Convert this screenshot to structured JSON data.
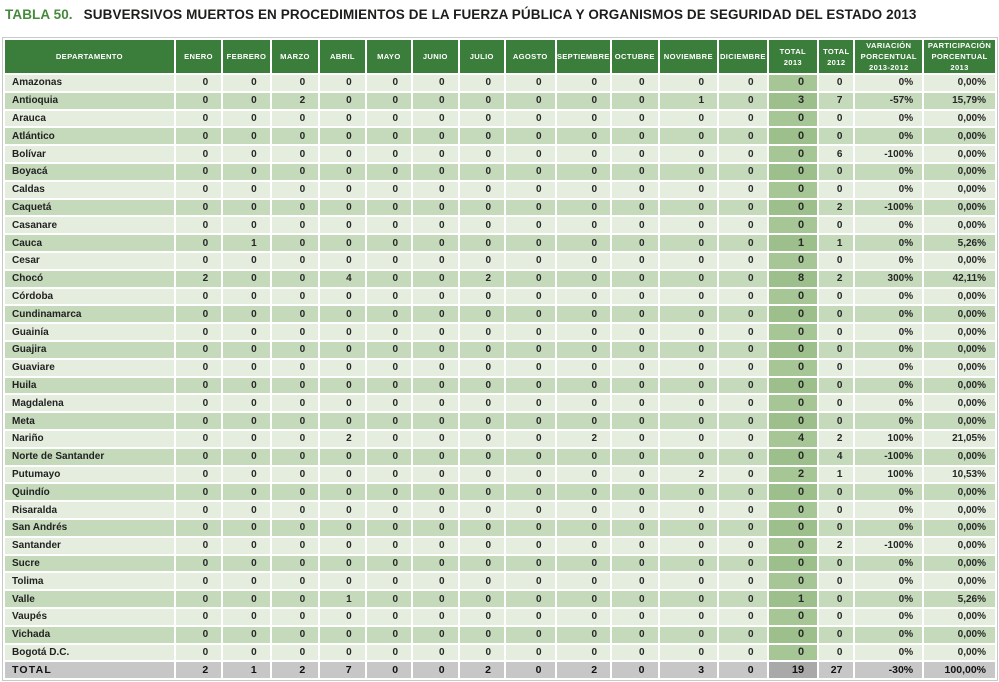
{
  "title": {
    "label": "TABLA 50.",
    "text": "SUBVERSIVOS MUERTOS EN PROCEDIMIENTOS DE LA FUERZA PÚBLICA Y ORGANISMOS DE SEGURIDAD DEL ESTADO 2013"
  },
  "colors": {
    "title_green": "#46893c",
    "header_green": "#3b7d3a",
    "row_light": "#e5edde",
    "row_dark": "#c5d9bb",
    "total2013_col_light": "#a6c795",
    "total2013_col_dark": "#9cbf8b",
    "total_row_gray": "#c7c7c7",
    "total_row_total_cell_gray": "#a9a9a9"
  },
  "table": {
    "header": {
      "departamento": "DEPARTAMENTO",
      "months": [
        "ENERO",
        "FEBRERO",
        "MARZO",
        "ABRIL",
        "MAYO",
        "JUNIO",
        "JULIO",
        "AGOSTO",
        "SEPTIEMBRE",
        "OCTUBRE",
        "NOVIEMBRE",
        "DICIEMBRE"
      ],
      "total2013": [
        "TOTAL",
        "2013"
      ],
      "total2012": [
        "TOTAL",
        "2012"
      ],
      "variacion": [
        "VARIACIÓN",
        "PORCENTUAL",
        "2013-2012"
      ],
      "participacion": [
        "PARTICIPACIÓN",
        "PORCENTUAL",
        "2013"
      ]
    },
    "rows": [
      [
        "Amazonas",
        0,
        0,
        0,
        0,
        0,
        0,
        0,
        0,
        0,
        0,
        0,
        0,
        0,
        0,
        "0%",
        "0,00%"
      ],
      [
        "Antioquia",
        0,
        0,
        2,
        0,
        0,
        0,
        0,
        0,
        0,
        0,
        1,
        0,
        3,
        7,
        "-57%",
        "15,79%"
      ],
      [
        "Arauca",
        0,
        0,
        0,
        0,
        0,
        0,
        0,
        0,
        0,
        0,
        0,
        0,
        0,
        0,
        "0%",
        "0,00%"
      ],
      [
        "Atlántico",
        0,
        0,
        0,
        0,
        0,
        0,
        0,
        0,
        0,
        0,
        0,
        0,
        0,
        0,
        "0%",
        "0,00%"
      ],
      [
        "Bolívar",
        0,
        0,
        0,
        0,
        0,
        0,
        0,
        0,
        0,
        0,
        0,
        0,
        0,
        6,
        "-100%",
        "0,00%"
      ],
      [
        "Boyacá",
        0,
        0,
        0,
        0,
        0,
        0,
        0,
        0,
        0,
        0,
        0,
        0,
        0,
        0,
        "0%",
        "0,00%"
      ],
      [
        "Caldas",
        0,
        0,
        0,
        0,
        0,
        0,
        0,
        0,
        0,
        0,
        0,
        0,
        0,
        0,
        "0%",
        "0,00%"
      ],
      [
        "Caquetá",
        0,
        0,
        0,
        0,
        0,
        0,
        0,
        0,
        0,
        0,
        0,
        0,
        0,
        2,
        "-100%",
        "0,00%"
      ],
      [
        "Casanare",
        0,
        0,
        0,
        0,
        0,
        0,
        0,
        0,
        0,
        0,
        0,
        0,
        0,
        0,
        "0%",
        "0,00%"
      ],
      [
        "Cauca",
        0,
        1,
        0,
        0,
        0,
        0,
        0,
        0,
        0,
        0,
        0,
        0,
        1,
        1,
        "0%",
        "5,26%"
      ],
      [
        "Cesar",
        0,
        0,
        0,
        0,
        0,
        0,
        0,
        0,
        0,
        0,
        0,
        0,
        0,
        0,
        "0%",
        "0,00%"
      ],
      [
        "Chocó",
        2,
        0,
        0,
        4,
        0,
        0,
        2,
        0,
        0,
        0,
        0,
        0,
        8,
        2,
        "300%",
        "42,11%"
      ],
      [
        "Córdoba",
        0,
        0,
        0,
        0,
        0,
        0,
        0,
        0,
        0,
        0,
        0,
        0,
        0,
        0,
        "0%",
        "0,00%"
      ],
      [
        "Cundinamarca",
        0,
        0,
        0,
        0,
        0,
        0,
        0,
        0,
        0,
        0,
        0,
        0,
        0,
        0,
        "0%",
        "0,00%"
      ],
      [
        "Guainía",
        0,
        0,
        0,
        0,
        0,
        0,
        0,
        0,
        0,
        0,
        0,
        0,
        0,
        0,
        "0%",
        "0,00%"
      ],
      [
        "Guajira",
        0,
        0,
        0,
        0,
        0,
        0,
        0,
        0,
        0,
        0,
        0,
        0,
        0,
        0,
        "0%",
        "0,00%"
      ],
      [
        "Guaviare",
        0,
        0,
        0,
        0,
        0,
        0,
        0,
        0,
        0,
        0,
        0,
        0,
        0,
        0,
        "0%",
        "0,00%"
      ],
      [
        "Huila",
        0,
        0,
        0,
        0,
        0,
        0,
        0,
        0,
        0,
        0,
        0,
        0,
        0,
        0,
        "0%",
        "0,00%"
      ],
      [
        "Magdalena",
        0,
        0,
        0,
        0,
        0,
        0,
        0,
        0,
        0,
        0,
        0,
        0,
        0,
        0,
        "0%",
        "0,00%"
      ],
      [
        "Meta",
        0,
        0,
        0,
        0,
        0,
        0,
        0,
        0,
        0,
        0,
        0,
        0,
        0,
        0,
        "0%",
        "0,00%"
      ],
      [
        "Nariño",
        0,
        0,
        0,
        2,
        0,
        0,
        0,
        0,
        2,
        0,
        0,
        0,
        4,
        2,
        "100%",
        "21,05%"
      ],
      [
        "Norte de Santander",
        0,
        0,
        0,
        0,
        0,
        0,
        0,
        0,
        0,
        0,
        0,
        0,
        0,
        4,
        "-100%",
        "0,00%"
      ],
      [
        "Putumayo",
        0,
        0,
        0,
        0,
        0,
        0,
        0,
        0,
        0,
        0,
        2,
        0,
        2,
        1,
        "100%",
        "10,53%"
      ],
      [
        "Quindío",
        0,
        0,
        0,
        0,
        0,
        0,
        0,
        0,
        0,
        0,
        0,
        0,
        0,
        0,
        "0%",
        "0,00%"
      ],
      [
        "Risaralda",
        0,
        0,
        0,
        0,
        0,
        0,
        0,
        0,
        0,
        0,
        0,
        0,
        0,
        0,
        "0%",
        "0,00%"
      ],
      [
        "San Andrés",
        0,
        0,
        0,
        0,
        0,
        0,
        0,
        0,
        0,
        0,
        0,
        0,
        0,
        0,
        "0%",
        "0,00%"
      ],
      [
        "Santander",
        0,
        0,
        0,
        0,
        0,
        0,
        0,
        0,
        0,
        0,
        0,
        0,
        0,
        2,
        "-100%",
        "0,00%"
      ],
      [
        "Sucre",
        0,
        0,
        0,
        0,
        0,
        0,
        0,
        0,
        0,
        0,
        0,
        0,
        0,
        0,
        "0%",
        "0,00%"
      ],
      [
        "Tolima",
        0,
        0,
        0,
        0,
        0,
        0,
        0,
        0,
        0,
        0,
        0,
        0,
        0,
        0,
        "0%",
        "0,00%"
      ],
      [
        "Valle",
        0,
        0,
        0,
        1,
        0,
        0,
        0,
        0,
        0,
        0,
        0,
        0,
        1,
        0,
        "0%",
        "5,26%"
      ],
      [
        "Vaupés",
        0,
        0,
        0,
        0,
        0,
        0,
        0,
        0,
        0,
        0,
        0,
        0,
        0,
        0,
        "0%",
        "0,00%"
      ],
      [
        "Vichada",
        0,
        0,
        0,
        0,
        0,
        0,
        0,
        0,
        0,
        0,
        0,
        0,
        0,
        0,
        "0%",
        "0,00%"
      ],
      [
        "Bogotá D.C.",
        0,
        0,
        0,
        0,
        0,
        0,
        0,
        0,
        0,
        0,
        0,
        0,
        0,
        0,
        "0%",
        "0,00%"
      ]
    ],
    "total_row": [
      "TOTAL",
      2,
      1,
      2,
      7,
      0,
      0,
      2,
      0,
      2,
      0,
      3,
      0,
      19,
      27,
      "-30%",
      "100,00%"
    ]
  }
}
